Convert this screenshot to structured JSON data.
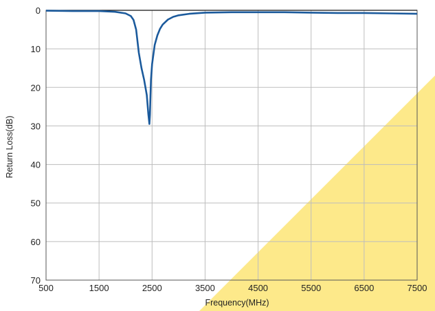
{
  "chart_data": {
    "type": "line",
    "xlabel": "Frequency(MHz)",
    "ylabel": "Return Loss(dB)",
    "xlim": [
      500,
      7500
    ],
    "ylim": [
      0,
      70
    ],
    "y_inverted": true,
    "grid": true,
    "x_ticks": [
      500,
      1500,
      2500,
      3500,
      4500,
      5500,
      6500,
      7500
    ],
    "y_ticks": [
      0,
      10,
      20,
      30,
      40,
      50,
      60,
      70
    ],
    "colors": {
      "line": "#1b5a9c",
      "grid": "#bdbdbd",
      "watermark": "#fde98a"
    },
    "series": [
      {
        "x": [
          500,
          1000,
          1500,
          1800,
          2000,
          2100,
          2150,
          2200,
          2250,
          2300,
          2350,
          2400,
          2430,
          2450,
          2460,
          2470,
          2480,
          2500,
          2550,
          2600,
          2650,
          2700,
          2800,
          2900,
          3000,
          3200,
          3500,
          4000,
          4500,
          5000,
          5500,
          6000,
          6500,
          7000,
          7500
        ],
        "y": [
          0.1,
          0.2,
          0.2,
          0.4,
          0.8,
          1.5,
          2.5,
          5,
          11,
          15,
          18,
          22,
          27,
          29.5,
          27,
          22,
          18,
          14,
          9,
          6.5,
          4.8,
          3.7,
          2.4,
          1.7,
          1.3,
          0.9,
          0.6,
          0.5,
          0.5,
          0.5,
          0.6,
          0.7,
          0.7,
          0.8,
          0.9
        ]
      }
    ]
  }
}
